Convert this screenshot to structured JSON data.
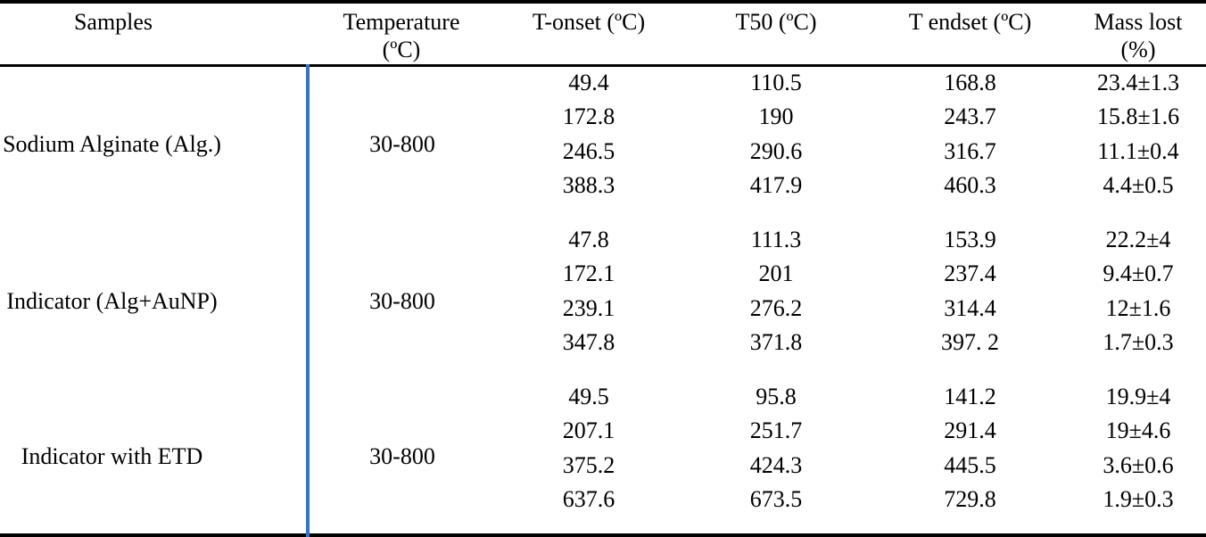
{
  "page": {
    "background": "#ffffff"
  },
  "table": {
    "rule_color": "#000000",
    "divider_color": "#2E76C6",
    "headers": {
      "samples": {
        "line1": "Samples",
        "line2": ""
      },
      "temperature": {
        "line1": "Temperature",
        "line2": "(ºC)"
      },
      "t_onset": {
        "line1": "T-onset (ºC)",
        "line2": ""
      },
      "t50": {
        "line1": "T50 (ºC)",
        "line2": ""
      },
      "t_endset": {
        "line1": "T endset (ºC)",
        "line2": ""
      },
      "mass_lost": {
        "line1": "Mass lost",
        "line2": "(%)"
      }
    },
    "groups": [
      {
        "sample": "Sodium Alginate (Alg.)",
        "temperature": "30-800",
        "rows": [
          {
            "t_onset": "49.4",
            "t50": "110.5",
            "t_endset": "168.8",
            "mass_lost": "23.4±1.3"
          },
          {
            "t_onset": "172.8",
            "t50": "190",
            "t_endset": "243.7",
            "mass_lost": "15.8±1.6"
          },
          {
            "t_onset": "246.5",
            "t50": "290.6",
            "t_endset": "316.7",
            "mass_lost": "11.1±0.4"
          },
          {
            "t_onset": "388.3",
            "t50": "417.9",
            "t_endset": "460.3",
            "mass_lost": "4.4±0.5"
          }
        ]
      },
      {
        "sample": "Indicator (Alg+AuNP)",
        "temperature": "30-800",
        "rows": [
          {
            "t_onset": "47.8",
            "t50": "111.3",
            "t_endset": "153.9",
            "mass_lost": "22.2±4"
          },
          {
            "t_onset": "172.1",
            "t50": "201",
            "t_endset": "237.4",
            "mass_lost": "9.4±0.7"
          },
          {
            "t_onset": "239.1",
            "t50": "276.2",
            "t_endset": "314.4",
            "mass_lost": "12±1.6"
          },
          {
            "t_onset": "347.8",
            "t50": "371.8",
            "t_endset": "397. 2",
            "mass_lost": "1.7±0.3"
          }
        ]
      },
      {
        "sample": "Indicator with ETD",
        "temperature": "30-800",
        "rows": [
          {
            "t_onset": "49.5",
            "t50": "95.8",
            "t_endset": "141.2",
            "mass_lost": "19.9±4"
          },
          {
            "t_onset": "207.1",
            "t50": "251.7",
            "t_endset": "291.4",
            "mass_lost": "19±4.6"
          },
          {
            "t_onset": "375.2",
            "t50": "424.3",
            "t_endset": "445.5",
            "mass_lost": "3.6±0.6"
          },
          {
            "t_onset": "637.6",
            "t50": "673.5",
            "t_endset": "729.8",
            "mass_lost": "1.9±0.3"
          }
        ]
      }
    ]
  }
}
